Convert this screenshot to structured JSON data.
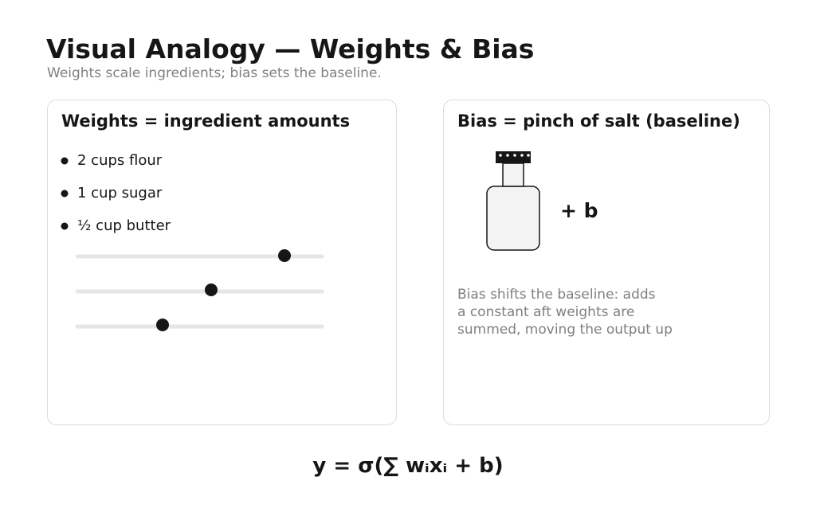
{
  "header": {
    "title": "Visual Analogy — Weights & Bias",
    "subtitle": "Weights scale ingredients; bias sets the baseline."
  },
  "weights_panel": {
    "title": "Weights = ingredient amounts",
    "items": [
      "2 cups flour",
      "1 cup sugar",
      "½ cup butter"
    ]
  },
  "bias_panel": {
    "title": "Bias = pinch of salt (baseline)",
    "term": "+ b",
    "description": [
      "Bias shifts the baseline: adds",
      "a constant aft weights are",
      "summed, moving the output up"
    ]
  },
  "formula": "y = σ(∑ wᵢxᵢ + b)"
}
